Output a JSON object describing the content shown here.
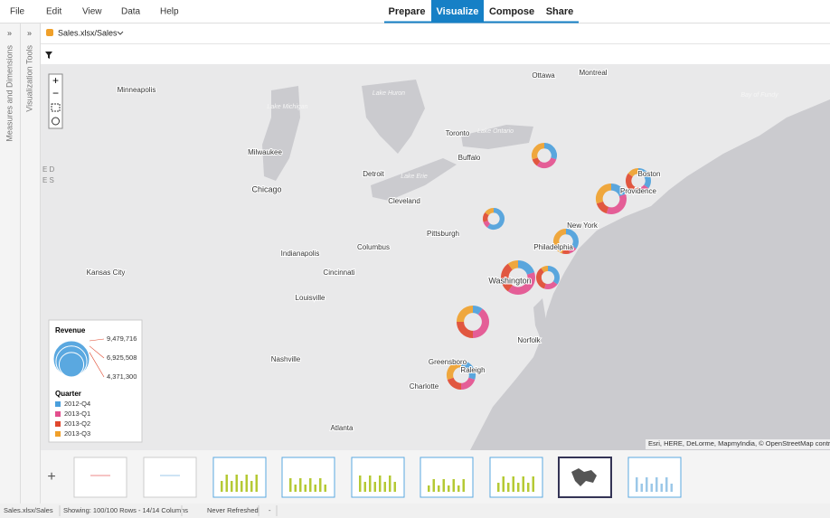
{
  "menu": [
    "File",
    "Edit",
    "View",
    "Data",
    "Help"
  ],
  "tabs": [
    {
      "label": "Prepare",
      "active": false
    },
    {
      "label": "Visualize",
      "active": true
    },
    {
      "label": "Compose",
      "active": false
    },
    {
      "label": "Share",
      "active": false
    }
  ],
  "side_panels": [
    "Measures and Dimensions",
    "Visualization Tools"
  ],
  "dataset": "Sales.xlsx/Sales",
  "map": {
    "cities": [
      "Ottawa",
      "Montreal",
      "Minneapolis",
      "Toronto",
      "Buffalo",
      "Milwaukee",
      "Detroit",
      "Boston",
      "Providence",
      "Chicago",
      "Cleveland",
      "New York",
      "Pittsburgh",
      "Philadelphia",
      "Indianapolis",
      "Columbus",
      "Kansas City",
      "Cincinnati",
      "Washington",
      "Louisville",
      "Norfolk",
      "Nashville",
      "Greensboro",
      "Raleigh",
      "Charlotte",
      "Atlanta"
    ],
    "water_labels": [
      "Lake Michigan",
      "Lake Huron",
      "Lake Erie",
      "Lake Ontario",
      "Bay of Fundy"
    ],
    "edge_labels": [
      "E D",
      "E S"
    ],
    "attribution": "Esri, HERE, DeLorme, MapmyIndia, © OpenStreetMap contri"
  },
  "legend": {
    "size_title": "Revenue",
    "sizes": [
      {
        "value": 9479716,
        "label": "9,479,716"
      },
      {
        "value": 6925508,
        "label": "6,925,508"
      },
      {
        "value": 4371300,
        "label": "4,371,300"
      }
    ],
    "color_title": "Quarter",
    "items": [
      {
        "name": "2012-Q4",
        "color": "#4a9fdc"
      },
      {
        "name": "2013-Q1",
        "color": "#e34f8e"
      },
      {
        "name": "2013-Q2",
        "color": "#e0472d"
      },
      {
        "name": "2013-Q3",
        "color": "#f0a02a"
      }
    ]
  },
  "status": [
    "Sales.xlsx/Sales",
    "Showing: 100/100 Rows - 14/14 Columns",
    "Never Refreshed",
    "-"
  ]
}
